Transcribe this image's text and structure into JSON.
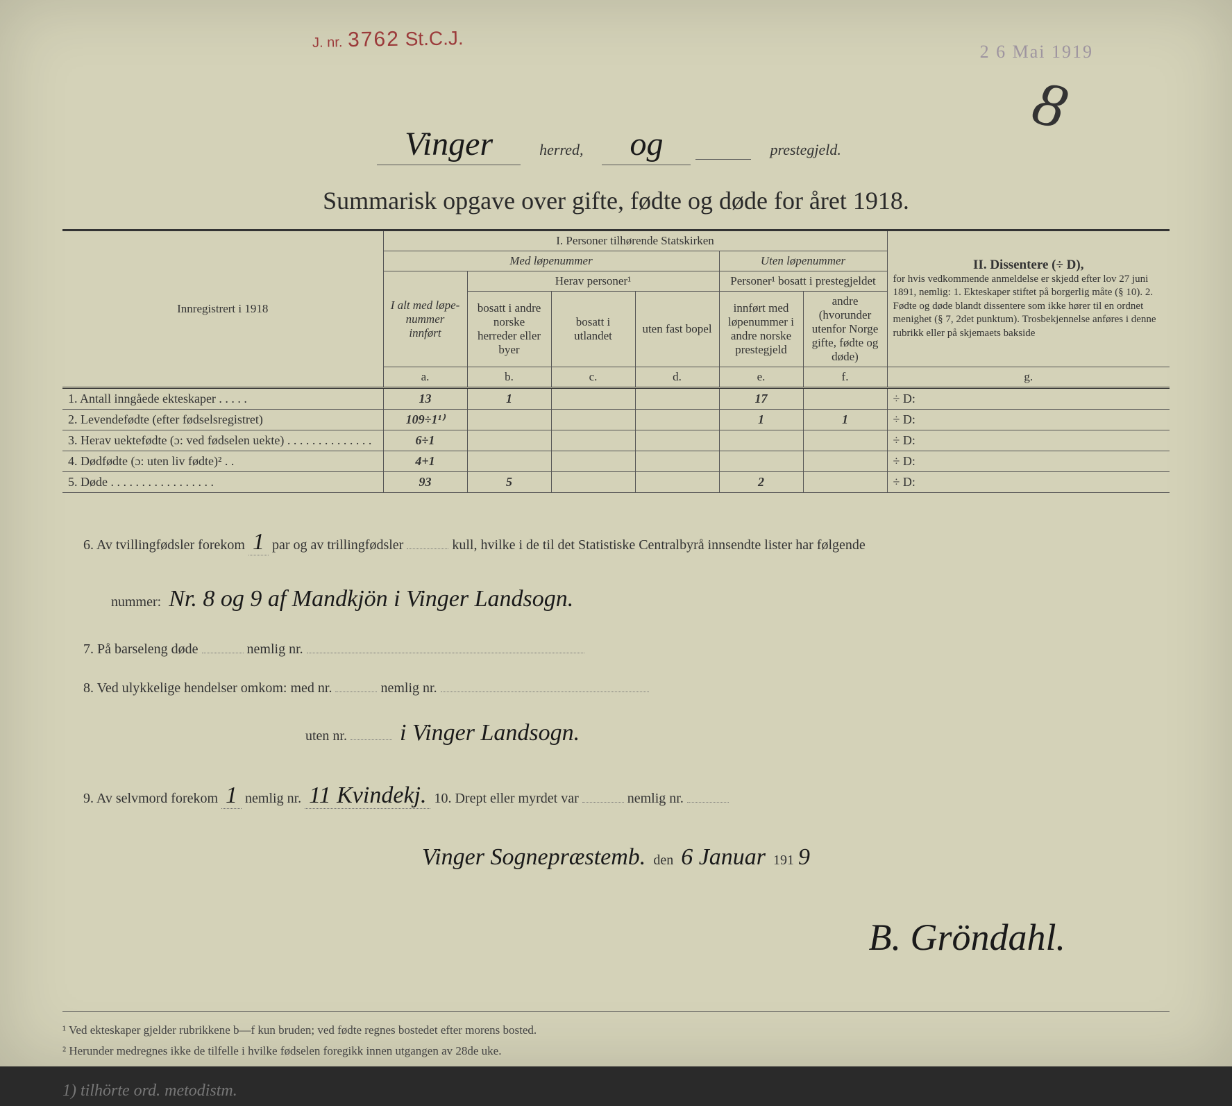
{
  "stamps": {
    "red_prefix": "J. nr.",
    "red_number": "3762",
    "red_suffix": "St.C.J.",
    "purple": "2 6 Mai 1919"
  },
  "flourish": "8",
  "header": {
    "herred": "Vinger",
    "herred_label": "herred,",
    "og": "og",
    "prestegjeld_label": "prestegjeld."
  },
  "title": "Summarisk opgave over gifte, fødte og døde for året 1918.",
  "col_headers": {
    "innreg": "Innregistrert i 1918",
    "section1": "I.  Personer tilhørende Statskirken",
    "med_lope": "Med løpenummer",
    "uten_lope": "Uten løpenummer",
    "ialt": "I alt med løpe-nummer innført",
    "herav": "Herav personer¹",
    "bosatt_andre": "bosatt i andre norske herreder eller byer",
    "bosatt_utl": "bosatt i utlandet",
    "uten_fast": "uten fast bopel",
    "pers_prest": "Personer¹ bosatt i prestegjeldet",
    "innfort_andre": "innført med løpenummer i andre norske prestegjeld",
    "andre_hvor": "andre (hvorunder utenfor Norge gifte, fødte og døde)",
    "section2": "II.  Dissentere (÷ D),",
    "diss_text": "for hvis vedkommende anmeldelse er skjedd efter lov 27 juni 1891, nemlig: 1. Ekteskaper stiftet på borgerlig måte (§ 10). 2. Fødte og døde blandt dissentere som ikke hører til en ordnet menighet (§ 7, 2det punktum). Trosbekjennelse anføres i denne rubrikk eller på skjemaets bakside",
    "letters": {
      "a": "a.",
      "b": "b.",
      "c": "c.",
      "d": "d.",
      "e": "e.",
      "f": "f.",
      "g": "g."
    }
  },
  "rows": [
    {
      "label": "1. Antall inngåede ekteskaper . . . . .",
      "a": "13",
      "b": "1",
      "c": "",
      "d": "",
      "e": "17",
      "f": "",
      "g": "÷ D:"
    },
    {
      "label": "2. Levendefødte (efter fødselsregistret)",
      "a": "109÷1¹⁾",
      "b": "",
      "c": "",
      "d": "",
      "e": "1",
      "f": "1",
      "g": "÷ D:"
    },
    {
      "label": "3. Herav uektefødte (ɔ: ved fødselen uekte) . . . . . . . . . . . . . .",
      "a": "6÷1",
      "b": "",
      "c": "",
      "d": "",
      "e": "",
      "f": "",
      "g": "÷ D:"
    },
    {
      "label": "4. Dødfødte (ɔ: uten liv fødte)² . .",
      "a": "4+1",
      "b": "",
      "c": "",
      "d": "",
      "e": "",
      "f": "",
      "g": "÷ D:"
    },
    {
      "label": "5. Døde . . . . . . . . . . . . . . . . .",
      "a": "93",
      "b": "5",
      "c": "",
      "d": "",
      "e": "2",
      "f": "",
      "g": "÷ D:"
    }
  ],
  "notes": {
    "line6a": "6. Av tvillingfødsler forekom",
    "line6_val1": "1",
    "line6b": "par og av trillingfødsler",
    "line6c": "kull, hvilke i de til det Statistiske Centralbyrå innsendte lister har følgende",
    "line6d": "nummer:",
    "line6_hand": "Nr. 8 og 9 af Mandkjön i Vinger Landsogn.",
    "line7": "7. På barseleng døde",
    "line7b": "nemlig nr.",
    "line8": "8. Ved ulykkelige hendelser omkom: med nr.",
    "line8b": "nemlig nr.",
    "line8c": "uten nr.",
    "line8_hand": "i Vinger Landsogn.",
    "line9": "9. Av selvmord forekom",
    "line9_val": "1",
    "line9b": "nemlig nr.",
    "line9_hand": "11 Kvindekj.",
    "line10": "10. Drept eller myrdet var",
    "line10b": "nemlig nr.",
    "place": "Vinger Sognepræstemb.",
    "den": "den",
    "date": "6 Januar",
    "year_prefix": "191",
    "year_suffix": "9",
    "signature": "B. Gröndahl."
  },
  "footnotes": {
    "f1": "¹  Ved ekteskaper gjelder rubrikkene b—f kun bruden; ved fødte regnes bostedet efter morens bosted.",
    "f2": "²  Herunder medregnes ikke de tilfelle i hvilke fødselen foregikk innen utgangen av 28de uke.",
    "pencil": "1) tilhörte ord. metodistm."
  }
}
